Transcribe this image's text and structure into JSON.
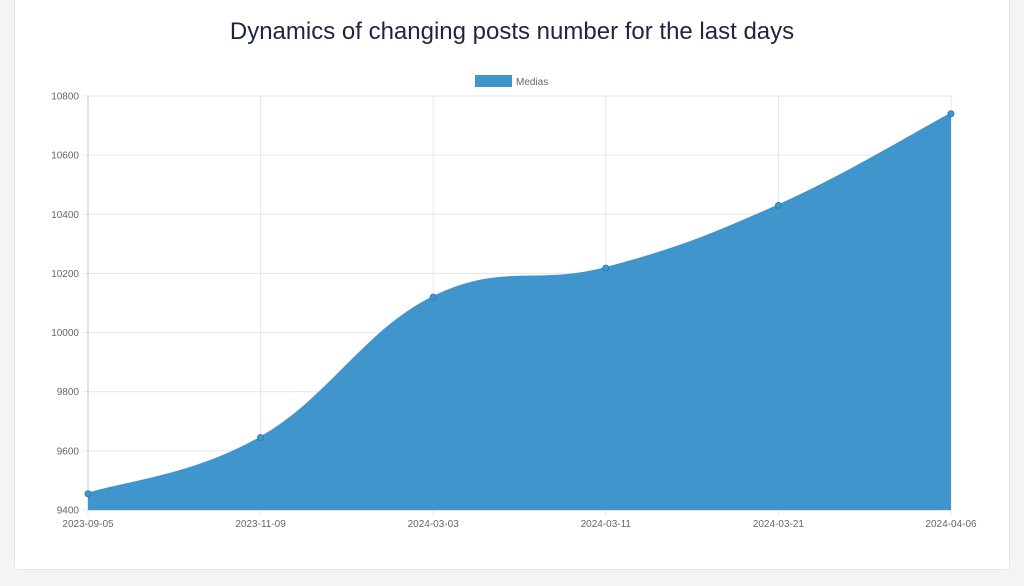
{
  "chart_data": {
    "type": "area",
    "title": "Dynamics of changing posts number for the last days",
    "x": [
      "2023-09-05",
      "2023-11-09",
      "2024-03-03",
      "2024-03-11",
      "2024-03-21",
      "2024-04-06"
    ],
    "series": [
      {
        "name": "Medias",
        "values": [
          9455,
          9645,
          10120,
          10218,
          10430,
          10740
        ],
        "color": "#3f95cc"
      }
    ],
    "ylim": [
      9400,
      10800
    ],
    "yticks": [
      9400,
      9600,
      9800,
      10000,
      10200,
      10400,
      10600,
      10800
    ],
    "grid": true,
    "legend": "top-center",
    "xlabel": "",
    "ylabel": ""
  }
}
